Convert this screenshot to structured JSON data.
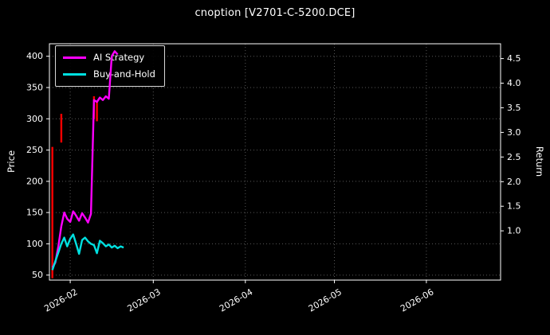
{
  "title": "cnoption [V2701-C-5200.DCE]",
  "axes": {
    "left_label": "Price",
    "right_label": "Return"
  },
  "legend": {
    "position": "upper left",
    "items": [
      {
        "label": "AI Strategy",
        "color": "#ff00ff"
      },
      {
        "label": "Buy-and-Hold",
        "color": "#00e0e0"
      }
    ]
  },
  "chart_data": {
    "type": "line",
    "title": "cnoption [V2701-C-5200.DCE]",
    "xlabel": "",
    "ylabel_left": "Price",
    "ylabel_right": "Return",
    "background_color": "#000000",
    "text_color": "#ffffff",
    "grid": true,
    "grid_color": "#585858",
    "legend_position": "upper left",
    "x_domain": [
      "2026-01-25",
      "2026-06-26"
    ],
    "x_ticks": [
      {
        "date": "2026-02-01",
        "label": "2026-02"
      },
      {
        "date": "2026-03-01",
        "label": "2026-03"
      },
      {
        "date": "2026-04-01",
        "label": "2026-04"
      },
      {
        "date": "2026-05-01",
        "label": "2026-05"
      },
      {
        "date": "2026-06-01",
        "label": "2026-06"
      }
    ],
    "left_axis": {
      "lim": [
        42,
        420
      ],
      "ticks": [
        50,
        100,
        150,
        200,
        250,
        300,
        350,
        400
      ]
    },
    "right_axis": {
      "lim": [
        0,
        4.8
      ],
      "ticks": [
        {
          "value": 1.0,
          "label": "1.0"
        },
        {
          "value": 1.5,
          "label": "1.5"
        },
        {
          "value": 2.0,
          "label": "2.0"
        },
        {
          "value": 2.5,
          "label": "2.5"
        },
        {
          "value": 3.0,
          "label": "3.0"
        },
        {
          "value": 3.5,
          "label": "3.5"
        },
        {
          "value": 4.0,
          "label": "4.0"
        },
        {
          "value": 4.5,
          "label": "4.5"
        }
      ]
    },
    "series": [
      {
        "name": "AI Strategy",
        "axis": "left",
        "color": "#ff00ff",
        "linewidth": 2.4,
        "dates": [
          "2026-01-26",
          "2026-01-27",
          "2026-01-28",
          "2026-01-29",
          "2026-01-30",
          "2026-01-31",
          "2026-02-01",
          "2026-02-02",
          "2026-02-03",
          "2026-02-04",
          "2026-02-05",
          "2026-02-06",
          "2026-02-07",
          "2026-02-08",
          "2026-02-09",
          "2026-02-10",
          "2026-02-11",
          "2026-02-12",
          "2026-02-13",
          "2026-02-14",
          "2026-02-15",
          "2026-02-16",
          "2026-02-17"
        ],
        "values": [
          62,
          70,
          96,
          128,
          150,
          140,
          135,
          152,
          145,
          137,
          149,
          142,
          134,
          148,
          330,
          327,
          334,
          330,
          336,
          332,
          400,
          408,
          403
        ]
      },
      {
        "name": "Buy-and-Hold",
        "axis": "left",
        "color": "#00e0e0",
        "linewidth": 2.4,
        "dates": [
          "2026-01-26",
          "2026-01-27",
          "2026-01-28",
          "2026-01-29",
          "2026-01-30",
          "2026-01-31",
          "2026-02-01",
          "2026-02-02",
          "2026-02-03",
          "2026-02-04",
          "2026-02-05",
          "2026-02-06",
          "2026-02-07",
          "2026-02-08",
          "2026-02-09",
          "2026-02-10",
          "2026-02-11",
          "2026-02-12",
          "2026-02-13",
          "2026-02-14",
          "2026-02-15",
          "2026-02-16",
          "2026-02-17",
          "2026-02-18",
          "2026-02-19"
        ],
        "values": [
          58,
          72,
          86,
          100,
          110,
          96,
          108,
          115,
          100,
          84,
          106,
          110,
          104,
          100,
          98,
          85,
          105,
          101,
          96,
          99,
          94,
          97,
          93,
          96,
          94
        ]
      }
    ],
    "signal_bars": {
      "color": "#ff0000",
      "linewidth": 2.4,
      "bars": [
        {
          "date": "2026-01-26",
          "low": 45,
          "high": 255
        },
        {
          "date": "2026-01-29",
          "low": 262,
          "high": 308
        },
        {
          "date": "2026-02-09",
          "low": 300,
          "high": 336
        },
        {
          "date": "2026-02-10",
          "low": 296,
          "high": 328
        }
      ]
    }
  }
}
